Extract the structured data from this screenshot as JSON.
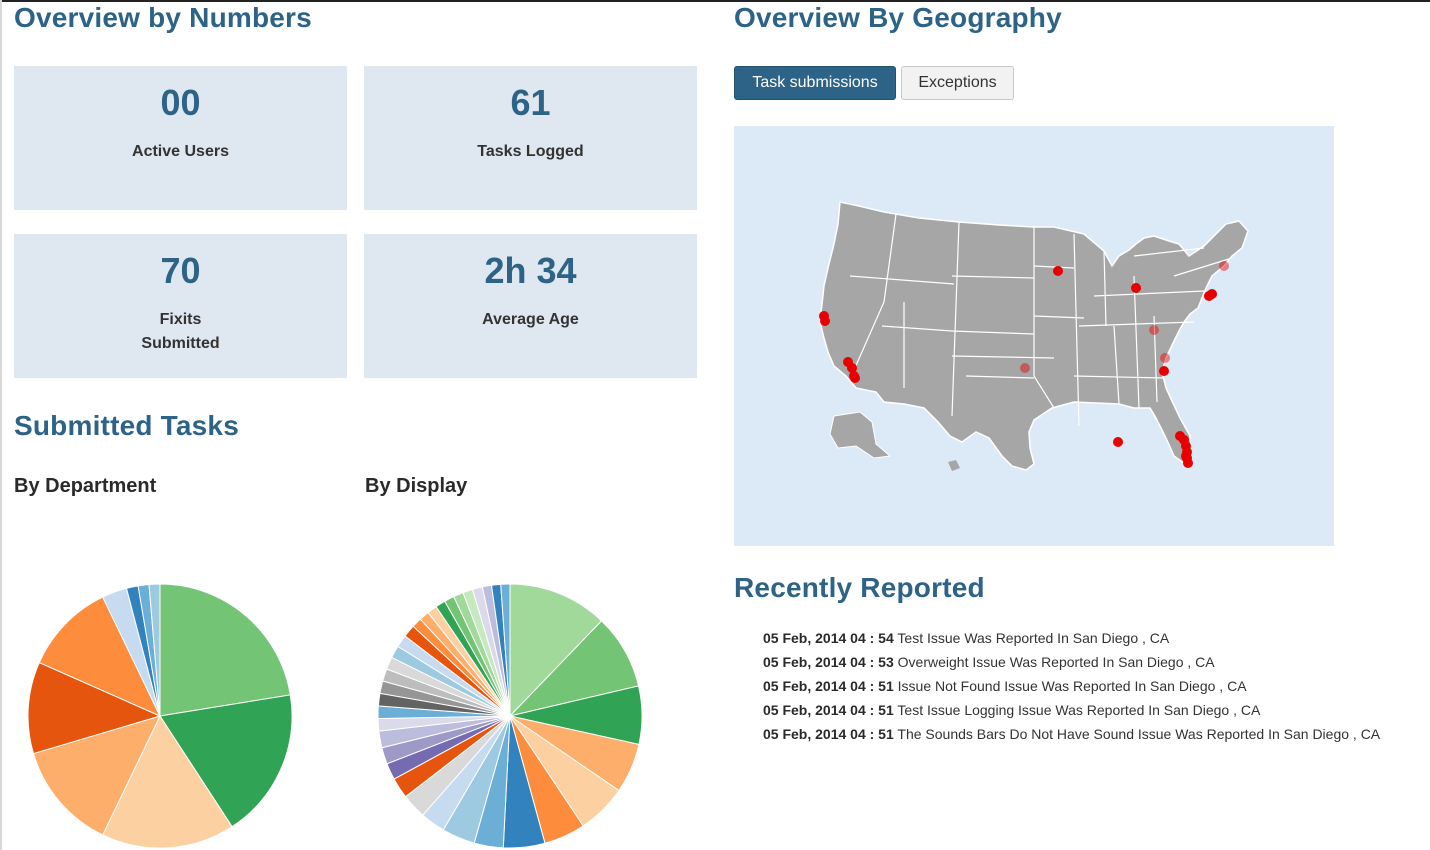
{
  "overview": {
    "title": "Overview by Numbers",
    "stats": [
      {
        "value": "00",
        "label_lines": [
          "Active Users"
        ]
      },
      {
        "value": "61",
        "label_lines": [
          "Tasks Logged"
        ]
      },
      {
        "value": "70",
        "label_lines": [
          "Fixits",
          "Submitted"
        ]
      },
      {
        "value": "2h 34",
        "label_lines": [
          "Average Age"
        ]
      }
    ]
  },
  "submitted": {
    "title": "Submitted Tasks",
    "by_department": "By Department",
    "by_display": "By Display"
  },
  "geography": {
    "title": "Overview By Geography",
    "tabs": [
      {
        "label": "Task submissions",
        "active": true
      },
      {
        "label": "Exceptions",
        "active": false
      }
    ],
    "marker_color": "#e60000",
    "land_color": "#a6a6a6",
    "water_color": "#dceaf7"
  },
  "recent": {
    "title": "Recently Reported",
    "items": [
      {
        "stamp": "05 Feb, 2014 04 : 54",
        "text": "Test Issue Was Reported In San Diego , CA"
      },
      {
        "stamp": "05 Feb, 2014 04 : 53",
        "text": "Overweight Issue Was Reported In San Diego , CA"
      },
      {
        "stamp": "05 Feb, 2014 04 : 51",
        "text": "Issue Not Found Issue Was Reported In San Diego , CA"
      },
      {
        "stamp": "05 Feb, 2014 04 : 51",
        "text": "Test Issue Logging Issue Was Reported In San Diego , CA"
      },
      {
        "stamp": "05 Feb, 2014 04 : 51",
        "text": "The Sounds Bars Do Not Have Sound Issue Was Reported In San Diego , CA"
      }
    ]
  },
  "chart_data": [
    {
      "type": "pie",
      "title": "By Department",
      "values": [
        22,
        18,
        16,
        13,
        11,
        11,
        3,
        1.4,
        1.3,
        1.3
      ],
      "colors": [
        "#74c476",
        "#31a354",
        "#fdd0a2",
        "#fdae6b",
        "#e6550d",
        "#fd8d3c",
        "#c6dbef",
        "#3182bd",
        "#6baed6",
        "#9ecae1"
      ]
    },
    {
      "type": "pie",
      "title": "By Display",
      "values": [
        12,
        9,
        7,
        6,
        6,
        5,
        5,
        3.5,
        4,
        3,
        3,
        2.5,
        2,
        2,
        2,
        1.5,
        1.5,
        1.5,
        1.5,
        1.5,
        1.5,
        1.5,
        1.5,
        1.5,
        1.2,
        1.2,
        1.2,
        1.2,
        1.2,
        1.2,
        1.2,
        1.2,
        1.1,
        1.1,
        1.1
      ],
      "colors": [
        "#a1d99b",
        "#74c476",
        "#31a354",
        "#fdae6b",
        "#fdd0a2",
        "#fd8d3c",
        "#3182bd",
        "#6baed6",
        "#9ecae1",
        "#c6dbef",
        "#d9d9d9",
        "#e6550d",
        "#756bb1",
        "#9e9ac8",
        "#bcbddc",
        "#dadaeb",
        "#6baed6",
        "#636363",
        "#969696",
        "#bdbdbd",
        "#d9d9d9",
        "#9ecae1",
        "#c6dbef",
        "#e6550d",
        "#fd8d3c",
        "#fdae6b",
        "#fdd0a2",
        "#31a354",
        "#74c476",
        "#a1d99b",
        "#c7e9c0",
        "#dadaeb",
        "#bcbddc",
        "#3182bd",
        "#6baed6"
      ]
    }
  ]
}
